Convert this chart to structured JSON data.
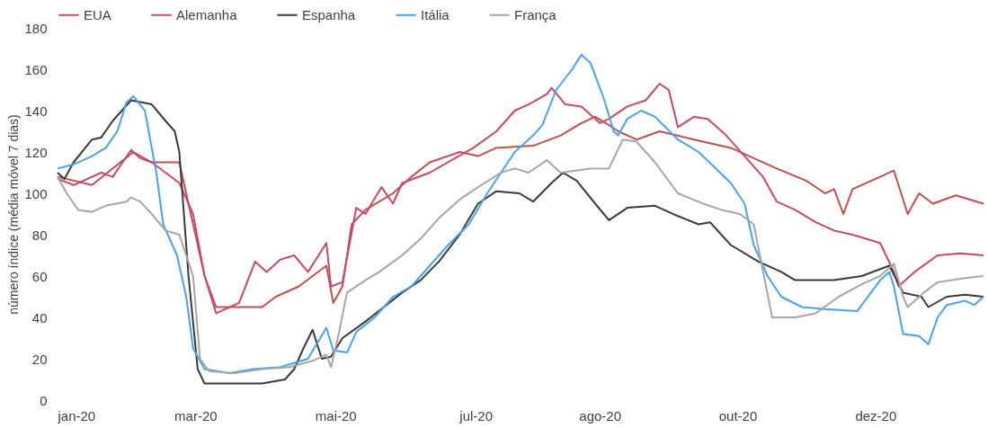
{
  "chart_data": {
    "type": "line",
    "ylabel": "número índice (média móvel 7 dias)",
    "xlim": [
      "2020-01-01",
      "2021-02-07"
    ],
    "ylim": [
      0,
      180
    ],
    "yticks": [
      0,
      20,
      40,
      60,
      80,
      100,
      120,
      140,
      160,
      180
    ],
    "xticks": [
      {
        "value": "2020-01-01",
        "label": "jan-20"
      },
      {
        "value": "2020-03-01",
        "label": "mar-20"
      },
      {
        "value": "2020-05-01",
        "label": "mai-20"
      },
      {
        "value": "2020-07-01",
        "label": "jul-20"
      },
      {
        "value": "2020-08-24",
        "label": "ago-20"
      },
      {
        "value": "2020-10-23",
        "label": "out-20"
      },
      {
        "value": "2020-12-22",
        "label": "dez-20"
      }
    ],
    "grid": false,
    "legend": "top left",
    "line_style": "solid",
    "marker": "none",
    "series": [
      {
        "name": "EUA",
        "color": "#c0504d",
        "x": [
          "2020-01-01",
          "2020-01-16",
          "2020-02-03",
          "2020-02-11",
          "2020-02-23",
          "2020-02-27",
          "2020-03-05",
          "2020-03-10",
          "2020-03-30",
          "2020-04-05",
          "2020-04-15",
          "2020-04-21",
          "2020-04-27",
          "2020-04-30",
          "2020-05-04",
          "2020-05-08",
          "2020-05-14",
          "2020-05-26",
          "2020-06-03",
          "2020-06-11",
          "2020-06-24",
          "2020-07-02",
          "2020-07-10",
          "2020-07-26",
          "2020-08-07",
          "2020-08-16",
          "2020-08-22",
          "2020-08-28",
          "2020-09-01",
          "2020-09-09",
          "2020-09-19",
          "2020-10-04",
          "2020-10-20",
          "2020-10-28",
          "2020-11-09",
          "2020-11-22",
          "2020-11-30",
          "2020-12-04",
          "2020-12-08",
          "2020-12-12",
          "2020-12-24",
          "2020-12-30",
          "2021-01-05",
          "2021-01-10",
          "2021-01-16",
          "2021-01-26",
          "2021-02-07"
        ],
        "values": [
          108,
          104,
          120,
          115,
          115,
          95,
          60,
          45,
          45,
          50,
          55,
          60,
          65,
          47,
          55,
          85,
          92,
          100,
          108,
          115,
          120,
          118,
          122,
          123,
          128,
          134,
          137,
          133,
          130,
          126,
          130,
          126,
          122,
          118,
          112,
          106,
          100,
          102,
          90,
          102,
          108,
          111,
          90,
          100,
          95,
          99,
          95
        ]
      },
      {
        "name": "Alemanha",
        "color": "#c9486f",
        "x": [
          "2020-01-01",
          "2020-01-08",
          "2020-01-20",
          "2020-01-25",
          "2020-02-02",
          "2020-02-06",
          "2020-02-11",
          "2020-02-17",
          "2020-02-23",
          "2020-02-29",
          "2020-03-05",
          "2020-03-10",
          "2020-03-16",
          "2020-03-20",
          "2020-03-27",
          "2020-04-01",
          "2020-04-07",
          "2020-04-13",
          "2020-04-19",
          "2020-04-27",
          "2020-04-29",
          "2020-05-04",
          "2020-05-10",
          "2020-05-14",
          "2020-05-21",
          "2020-05-26",
          "2020-05-30",
          "2020-06-11",
          "2020-06-22",
          "2020-06-30",
          "2020-07-10",
          "2020-07-18",
          "2020-07-24",
          "2020-08-01",
          "2020-08-03",
          "2020-08-09",
          "2020-08-16",
          "2020-08-24",
          "2020-08-28",
          "2020-09-05",
          "2020-09-13",
          "2020-09-19",
          "2020-09-23",
          "2020-09-27",
          "2020-10-04",
          "2020-10-10",
          "2020-10-18",
          "2020-10-26",
          "2020-11-03",
          "2020-11-09",
          "2020-11-17",
          "2020-11-26",
          "2020-12-04",
          "2020-12-12",
          "2020-12-24",
          "2020-12-30",
          "2021-01-01",
          "2021-01-08",
          "2021-01-18",
          "2021-01-28",
          "2021-02-07"
        ],
        "values": [
          107,
          104,
          110,
          108,
          121,
          117,
          115,
          110,
          105,
          90,
          60,
          42,
          45,
          47,
          67,
          62,
          68,
          70,
          62,
          76,
          55,
          57,
          93,
          90,
          103,
          95,
          105,
          110,
          117,
          122,
          130,
          140,
          143,
          148,
          151,
          143,
          142,
          134,
          136,
          142,
          145,
          153,
          150,
          132,
          137,
          136,
          128,
          118,
          108,
          96,
          92,
          86,
          82,
          80,
          76,
          62,
          55,
          62,
          70,
          71,
          70
        ]
      },
      {
        "name": "Espanha",
        "color": "#3a3a3a",
        "x": [
          "2020-01-01",
          "2020-01-04",
          "2020-01-08",
          "2020-01-16",
          "2020-01-20",
          "2020-01-25",
          "2020-02-02",
          "2020-02-11",
          "2020-02-17",
          "2020-02-21",
          "2020-02-23",
          "2020-02-27",
          "2020-03-02",
          "2020-03-05",
          "2020-03-30",
          "2020-04-09",
          "2020-04-13",
          "2020-04-17",
          "2020-04-21",
          "2020-04-25",
          "2020-04-29",
          "2020-05-04",
          "2020-05-14",
          "2020-05-22",
          "2020-05-30",
          "2020-06-07",
          "2020-06-15",
          "2020-06-24",
          "2020-07-02",
          "2020-07-10",
          "2020-07-20",
          "2020-07-26",
          "2020-08-03",
          "2020-08-08",
          "2020-08-14",
          "2020-08-22",
          "2020-08-28",
          "2020-09-05",
          "2020-09-17",
          "2020-09-27",
          "2020-10-06",
          "2020-10-11",
          "2020-10-20",
          "2020-11-01",
          "2020-11-11",
          "2020-11-17",
          "2020-12-04",
          "2020-12-16",
          "2020-12-28",
          "2021-01-03",
          "2021-01-11",
          "2021-01-14",
          "2021-01-22",
          "2021-01-30",
          "2021-02-07"
        ],
        "values": [
          110,
          107,
          115,
          126,
          127,
          135,
          145,
          143,
          135,
          130,
          120,
          60,
          15,
          8,
          8,
          10,
          15,
          25,
          34,
          20,
          21,
          30,
          38,
          45,
          52,
          58,
          67,
          80,
          95,
          101,
          100,
          96,
          105,
          110,
          106,
          95,
          87,
          93,
          94,
          89,
          85,
          86,
          75,
          67,
          62,
          58,
          58,
          60,
          65,
          52,
          50,
          45,
          50,
          51,
          50
        ]
      },
      {
        "name": "Itália",
        "color": "#4aa3e8",
        "x": [
          "2020-01-01",
          "2020-01-08",
          "2020-01-16",
          "2020-01-22",
          "2020-01-27",
          "2020-01-31",
          "2020-02-03",
          "2020-02-08",
          "2020-02-13",
          "2020-02-16",
          "2020-02-22",
          "2020-02-26",
          "2020-02-29",
          "2020-03-05",
          "2020-03-16",
          "2020-03-26",
          "2020-04-07",
          "2020-04-19",
          "2020-04-27",
          "2020-04-30",
          "2020-05-06",
          "2020-05-10",
          "2020-05-18",
          "2020-05-26",
          "2020-06-03",
          "2020-06-11",
          "2020-06-19",
          "2020-06-28",
          "2020-07-06",
          "2020-07-12",
          "2020-07-18",
          "2020-07-26",
          "2020-07-30",
          "2020-08-05",
          "2020-08-12",
          "2020-08-16",
          "2020-08-20",
          "2020-08-26",
          "2020-08-30",
          "2020-09-01",
          "2020-09-05",
          "2020-09-11",
          "2020-09-17",
          "2020-09-27",
          "2020-10-06",
          "2020-10-20",
          "2020-10-26",
          "2020-10-30",
          "2020-11-05",
          "2020-11-11",
          "2020-11-20",
          "2020-11-30",
          "2020-12-14",
          "2020-12-24",
          "2020-12-28",
          "2020-12-30",
          "2021-01-03",
          "2021-01-10",
          "2021-01-14",
          "2021-01-18",
          "2021-01-22",
          "2021-01-30",
          "2021-02-03",
          "2021-02-07"
        ],
        "values": [
          112,
          114,
          118,
          122,
          130,
          144,
          147,
          140,
          110,
          85,
          70,
          50,
          25,
          15,
          13,
          15,
          16,
          20,
          35,
          24,
          23,
          33,
          40,
          50,
          55,
          65,
          75,
          85,
          100,
          110,
          120,
          128,
          133,
          150,
          160,
          167,
          163,
          145,
          130,
          128,
          136,
          140,
          137,
          126,
          120,
          105,
          95,
          75,
          60,
          50,
          45,
          44,
          43,
          58,
          62,
          55,
          32,
          31,
          27,
          40,
          46,
          48,
          46,
          50
        ]
      },
      {
        "name": "França",
        "color": "#a6a6a6",
        "x": [
          "2020-01-01",
          "2020-01-05",
          "2020-01-10",
          "2020-01-16",
          "2020-01-22",
          "2020-01-31",
          "2020-02-02",
          "2020-02-06",
          "2020-02-11",
          "2020-02-17",
          "2020-02-23",
          "2020-02-29",
          "2020-03-03",
          "2020-03-07",
          "2020-03-18",
          "2020-03-30",
          "2020-04-11",
          "2020-04-21",
          "2020-04-27",
          "2020-04-29",
          "2020-05-02",
          "2020-05-06",
          "2020-05-14",
          "2020-05-20",
          "2020-05-30",
          "2020-06-07",
          "2020-06-15",
          "2020-06-24",
          "2020-07-02",
          "2020-07-12",
          "2020-07-18",
          "2020-07-24",
          "2020-08-01",
          "2020-08-07",
          "2020-08-20",
          "2020-08-28",
          "2020-09-03",
          "2020-09-09",
          "2020-09-17",
          "2020-09-27",
          "2020-10-08",
          "2020-10-16",
          "2020-10-24",
          "2020-10-30",
          "2020-11-07",
          "2020-11-17",
          "2020-11-26",
          "2020-12-06",
          "2020-12-16",
          "2020-12-24",
          "2020-12-30",
          "2021-01-03",
          "2021-01-05",
          "2021-01-12",
          "2021-01-18",
          "2021-01-30",
          "2021-02-07"
        ],
        "values": [
          108,
          100,
          92,
          91,
          94,
          96,
          98,
          96,
          90,
          82,
          80,
          60,
          20,
          14,
          13,
          15,
          16,
          19,
          22,
          16,
          30,
          52,
          58,
          62,
          70,
          78,
          88,
          97,
          103,
          110,
          112,
          110,
          116,
          110,
          112,
          112,
          126,
          125,
          115,
          100,
          95,
          92,
          90,
          85,
          40,
          40,
          42,
          50,
          56,
          60,
          66,
          50,
          45,
          52,
          57,
          59,
          60
        ]
      }
    ]
  }
}
